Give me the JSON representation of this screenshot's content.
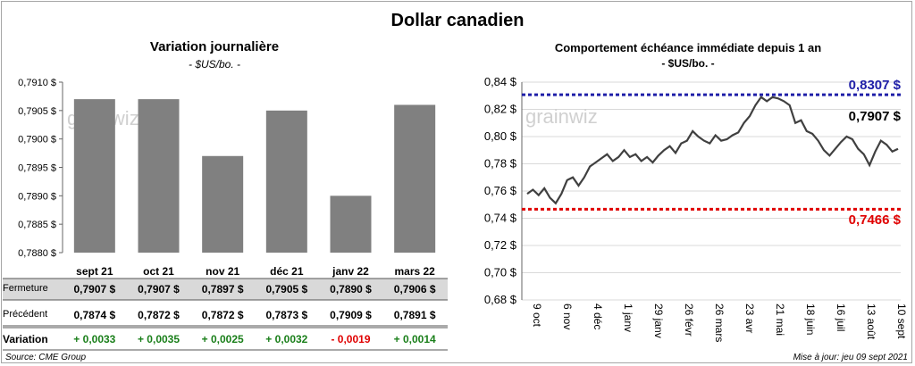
{
  "title": "Dollar canadien",
  "left_chart": {
    "title": "Variation  journalière",
    "subtitle": "- $US/bo. -",
    "watermark": "grainwiz"
  },
  "right_chart": {
    "title": "Comportement échéance immédiate depuis 1 an",
    "subtitle": "- $US/bo. -",
    "watermark": "grainwiz",
    "high_label": "0,8307 $",
    "low_label": "0,7466 $",
    "last_label": "0,7907 $",
    "x_ticks": [
      "9 oct",
      "6 nov",
      "4 déc",
      "1 janv",
      "29 janv",
      "26 févr",
      "26 mars",
      "23 avr",
      "21 mai",
      "18 juin",
      "16 juil",
      "13 août",
      "10 sept"
    ]
  },
  "table": {
    "row_labels": [
      "Fermeture",
      "Précédent",
      "Variation"
    ],
    "fermeture": [
      "0,7907 $",
      "0,7907 $",
      "0,7897 $",
      "0,7905 $",
      "0,7890 $",
      "0,7906 $"
    ],
    "precedent": [
      "0,7874 $",
      "0,7872 $",
      "0,7872 $",
      "0,7873 $",
      "0,7909 $",
      "0,7891 $"
    ],
    "variation": [
      "+ 0,0033",
      "+ 0,0035",
      "+ 0,0025",
      "+ 0,0032",
      "- 0,0019",
      "+ 0,0014"
    ]
  },
  "footer": {
    "source": "Source: CME Group",
    "updated": "Mise à jour: jeu 09 sept 2021"
  },
  "colors": {
    "bar": "#808080",
    "line": "#404040",
    "high": "#1f1fa8",
    "low": "#e00000",
    "positive": "#1a7f1a",
    "negative": "#e00000"
  },
  "chart_data": [
    {
      "type": "bar",
      "categories": [
        "sept 21",
        "oct 21",
        "nov 21",
        "déc 21",
        "janv 22",
        "mars 22"
      ],
      "values": [
        0.7907,
        0.7907,
        0.7897,
        0.7905,
        0.789,
        0.7906
      ],
      "ylim": [
        0.788,
        0.791
      ],
      "y_ticks": [
        "0,7880 $",
        "0,7885 $",
        "0,7890 $",
        "0,7895 $",
        "0,7900 $",
        "0,7905 $",
        "0,7910 $"
      ],
      "grid": false
    },
    {
      "type": "line",
      "ylim": [
        0.68,
        0.84
      ],
      "y_ticks": [
        "0,68 $",
        "0,70 $",
        "0,72 $",
        "0,74 $",
        "0,76 $",
        "0,78 $",
        "0,80 $",
        "0,82 $",
        "0,84 $"
      ],
      "grid": true,
      "high": 0.8307,
      "low": 0.7466,
      "last": 0.7907,
      "values": [
        0.758,
        0.761,
        0.757,
        0.762,
        0.755,
        0.751,
        0.758,
        0.768,
        0.77,
        0.764,
        0.77,
        0.778,
        0.781,
        0.784,
        0.787,
        0.782,
        0.785,
        0.79,
        0.785,
        0.787,
        0.782,
        0.785,
        0.781,
        0.786,
        0.79,
        0.793,
        0.788,
        0.795,
        0.797,
        0.804,
        0.8,
        0.797,
        0.795,
        0.801,
        0.797,
        0.798,
        0.801,
        0.803,
        0.81,
        0.815,
        0.823,
        0.829,
        0.826,
        0.829,
        0.828,
        0.826,
        0.823,
        0.81,
        0.812,
        0.804,
        0.802,
        0.797,
        0.79,
        0.786,
        0.791,
        0.796,
        0.8,
        0.798,
        0.791,
        0.787,
        0.779,
        0.789,
        0.797,
        0.794,
        0.789,
        0.791
      ]
    }
  ]
}
